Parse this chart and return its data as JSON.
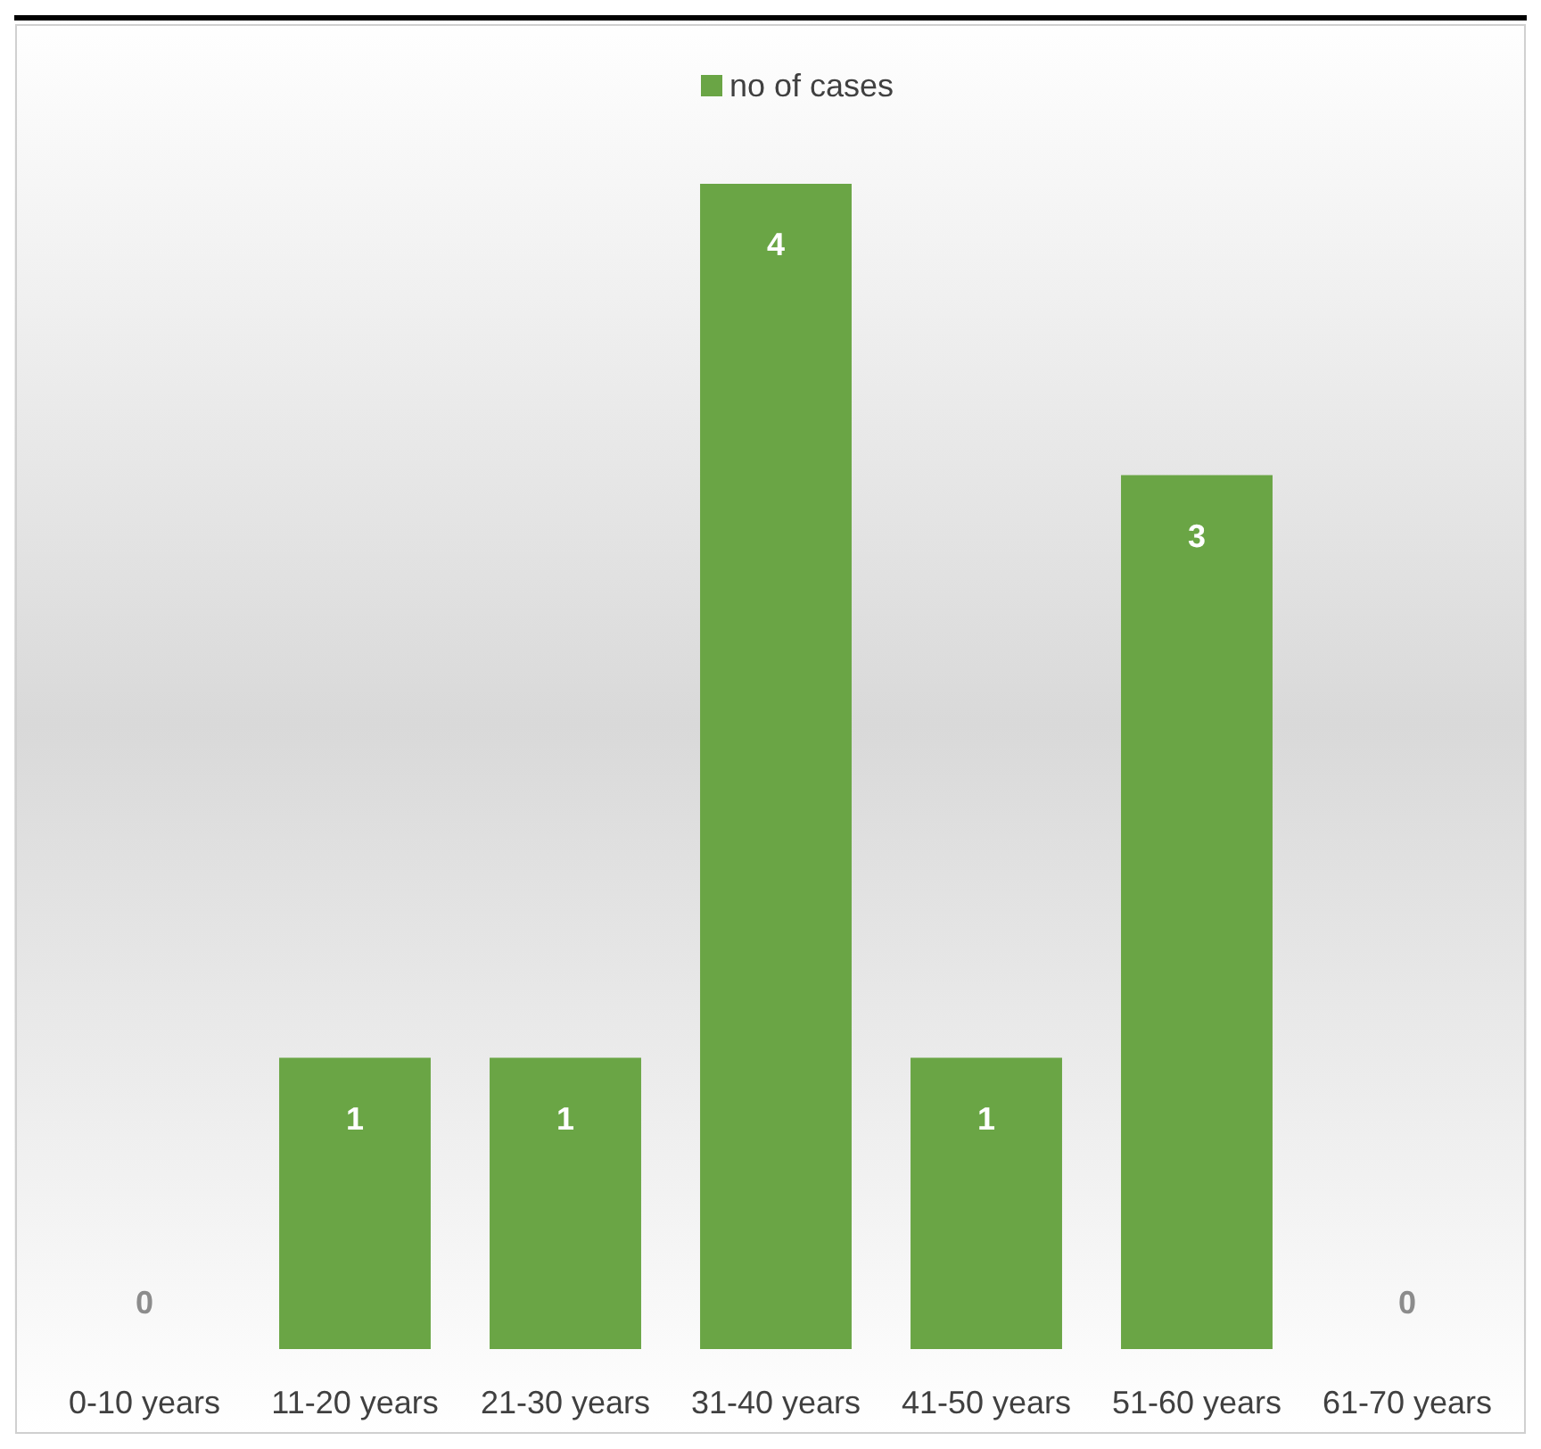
{
  "chart_data": {
    "type": "bar",
    "categories": [
      "0-10 years",
      "11-20 years",
      "21-30 years",
      "31-40 years",
      "41-50 years",
      "51-60 years",
      "61-70 years"
    ],
    "series": [
      {
        "name": "no of cases",
        "color": "#6aa545",
        "values": [
          0,
          1,
          1,
          4,
          1,
          3,
          0
        ]
      }
    ],
    "data_labels": true,
    "legend": "top"
  }
}
